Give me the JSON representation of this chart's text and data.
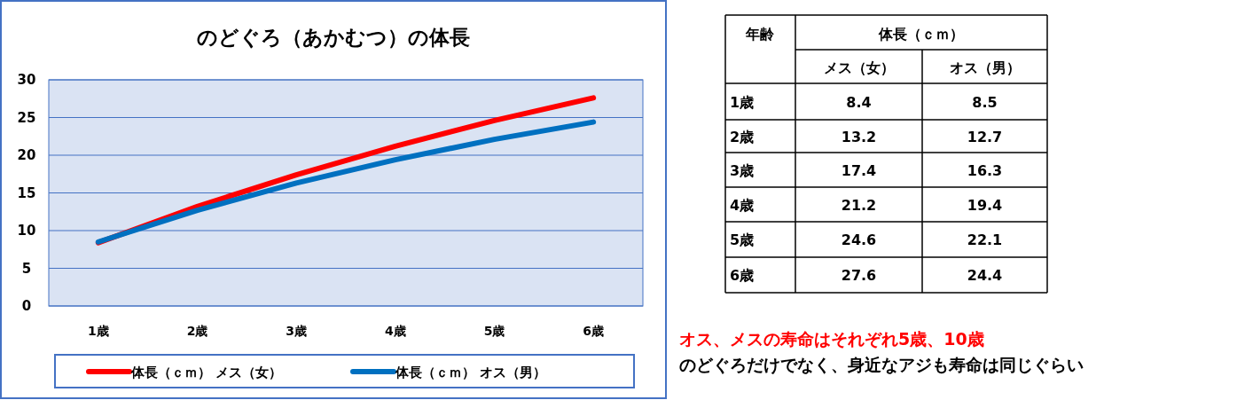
{
  "chart_data": [
    {
      "type": "line",
      "title": "のどぐろ（あかむつ）の体長",
      "categories": [
        "1歳",
        "2歳",
        "3歳",
        "4歳",
        "5歳",
        "6歳"
      ],
      "series": [
        {
          "name": "体長（ｃｍ） メス（女）",
          "color": "#ff0000",
          "values": [
            8.4,
            13.2,
            17.4,
            21.2,
            24.6,
            27.6
          ]
        },
        {
          "name": "体長（ｃｍ） オス（男）",
          "color": "#0070c0",
          "values": [
            8.5,
            12.7,
            16.3,
            19.4,
            22.1,
            24.4
          ]
        }
      ],
      "ylim": [
        0,
        30
      ],
      "yticks": [
        0,
        5,
        10,
        15,
        20,
        25,
        30
      ],
      "grid": "y",
      "legend": "bottom",
      "line_style": "solid",
      "marker": "none"
    },
    {
      "type": "heatmap",
      "title": "体長（ｃｍ）",
      "ylabel": "年齢",
      "categories": [
        "メス（女）",
        "オス（男）"
      ],
      "y_categories": [
        "1歳",
        "2歳",
        "3歳",
        "4歳",
        "5歳",
        "6歳"
      ],
      "cells": [
        [
          8.4,
          8.5
        ],
        [
          13.2,
          12.7
        ],
        [
          17.4,
          16.3
        ],
        [
          21.2,
          19.4
        ],
        [
          24.6,
          22.1
        ],
        [
          27.6,
          24.4
        ]
      ],
      "data_labels": true,
      "annotations": [
        "オス、メスの寿命はそれぞれ5歳、10歳",
        "のどぐろだけでなく、身近なアジも寿命は同じぐらい"
      ]
    }
  ]
}
